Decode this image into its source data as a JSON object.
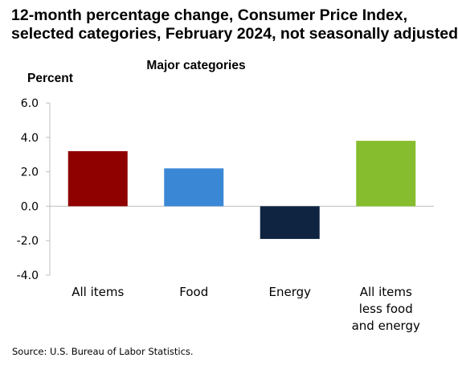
{
  "chart_data": {
    "type": "bar",
    "title_lines": [
      "12-month percentage change, Consumer Price Index,",
      "selected categories, February 2024, not seasonally adjusted"
    ],
    "subtitle": "Major categories",
    "ylabel": "Percent",
    "ylim": [
      -4.0,
      6.0
    ],
    "yticks": [
      "6.0",
      "4.0",
      "2.0",
      "0.0",
      "-2.0",
      "-4.0"
    ],
    "ytick_values": [
      6.0,
      4.0,
      2.0,
      0.0,
      -2.0,
      -4.0
    ],
    "grid": false,
    "legend": "none",
    "categories": [
      [
        "All items"
      ],
      [
        "Food"
      ],
      [
        "Energy"
      ],
      [
        "All items",
        "less food",
        "and energy"
      ]
    ],
    "values": [
      3.2,
      2.2,
      -1.9,
      3.8
    ],
    "colors": [
      "#8f0000",
      "#3a87d6",
      "#0f2440",
      "#86bd2e"
    ],
    "source": "Source: U.S. Bureau of Labor Statistics."
  }
}
